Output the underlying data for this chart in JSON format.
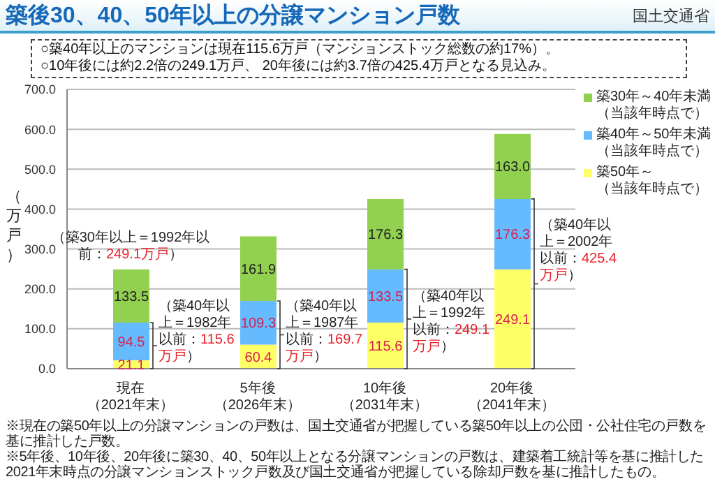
{
  "chart_data": {
    "type": "bar",
    "title": "築後30、40、50年以上の分譲マンション戸数",
    "subtitle": "○築40年以上のマンションは現在115.6万戸（マンションストック総数の約17%）。\n○10年後には約2.2倍の249.1万戸、 20年後には約3.7倍の425.4万戸となる見込み。",
    "ylabel": "（万戸）",
    "categories": [
      "現在（2021年末）",
      "5年後（2026年末）",
      "10年後（2031年末）",
      "20年後（2041年末）"
    ],
    "stacked": true,
    "series": [
      {
        "name": "築50年～（当該年時点で）",
        "color": "#ffff66",
        "values": [
          21.1,
          60.4,
          115.6,
          249.1
        ],
        "value_labels": [
          "21.1",
          "60.4",
          "115.6",
          "249.1"
        ]
      },
      {
        "name": "築40年～50年未満（当該年時点で）",
        "color": "#66bbff",
        "values": [
          94.5,
          109.3,
          133.5,
          176.3
        ],
        "value_labels": [
          "94.5",
          "109.3",
          "133.5",
          "176.3"
        ]
      },
      {
        "name": "築30年～40年未満（当該年時点で）",
        "color": "#92d050",
        "values": [
          133.5,
          161.9,
          176.3,
          163.0
        ],
        "value_labels": [
          "133.5",
          "161.9",
          "176.3",
          "163.0"
        ]
      }
    ],
    "ylim": [
      0,
      700
    ],
    "yticks": [
      {
        "value": 0,
        "label": "0.0"
      },
      {
        "value": 100,
        "label": "100.0"
      },
      {
        "value": 200,
        "label": "200.0"
      },
      {
        "value": 300,
        "label": "300.0"
      },
      {
        "value": 400,
        "label": "400.0"
      },
      {
        "value": 500,
        "label": "500.0"
      },
      {
        "value": 600,
        "label": "600.0"
      },
      {
        "value": 700,
        "label": "700.0"
      }
    ],
    "grid": "y",
    "legend": "top right",
    "annotations": [
      "国土交通省",
      "※現在の築50年以上の分譲マンションの戸数は、国土交通省が把握している築50年以上の公団・公社住宅の戸数を基に推計した戸数。",
      "※5年後、10年後、20年後に築30、40、50年以上となる分譲マンションの戸数は、建築着工統計等を基に推計した2021年末時点の分譲マンションストック戸数及び国土交通省が把握している除却戸数を基に推計したもの。",
      {
        "text": "（築30年以上＝1992年以前：249.1万戸）",
        "x": "現在（2021年末）",
        "y": 249.1
      },
      {
        "text": "（築40年以上＝1982年以前：115.6万戸）",
        "x": "現在（2021年末）",
        "y": 115.6
      },
      {
        "text": "（築40年以上＝1987年以前：169.7万戸）",
        "x": "5年後（2026年末）",
        "y": 169.7
      },
      {
        "text": "（築40年以上＝1992年以前：249.1万戸）",
        "x": "10年後（2031年末）",
        "y": 249.1
      },
      {
        "text": "（築40年以上＝2002年以前：425.4万戸）",
        "x": "20年後（2041年末）",
        "y": 425.4
      }
    ]
  }
}
